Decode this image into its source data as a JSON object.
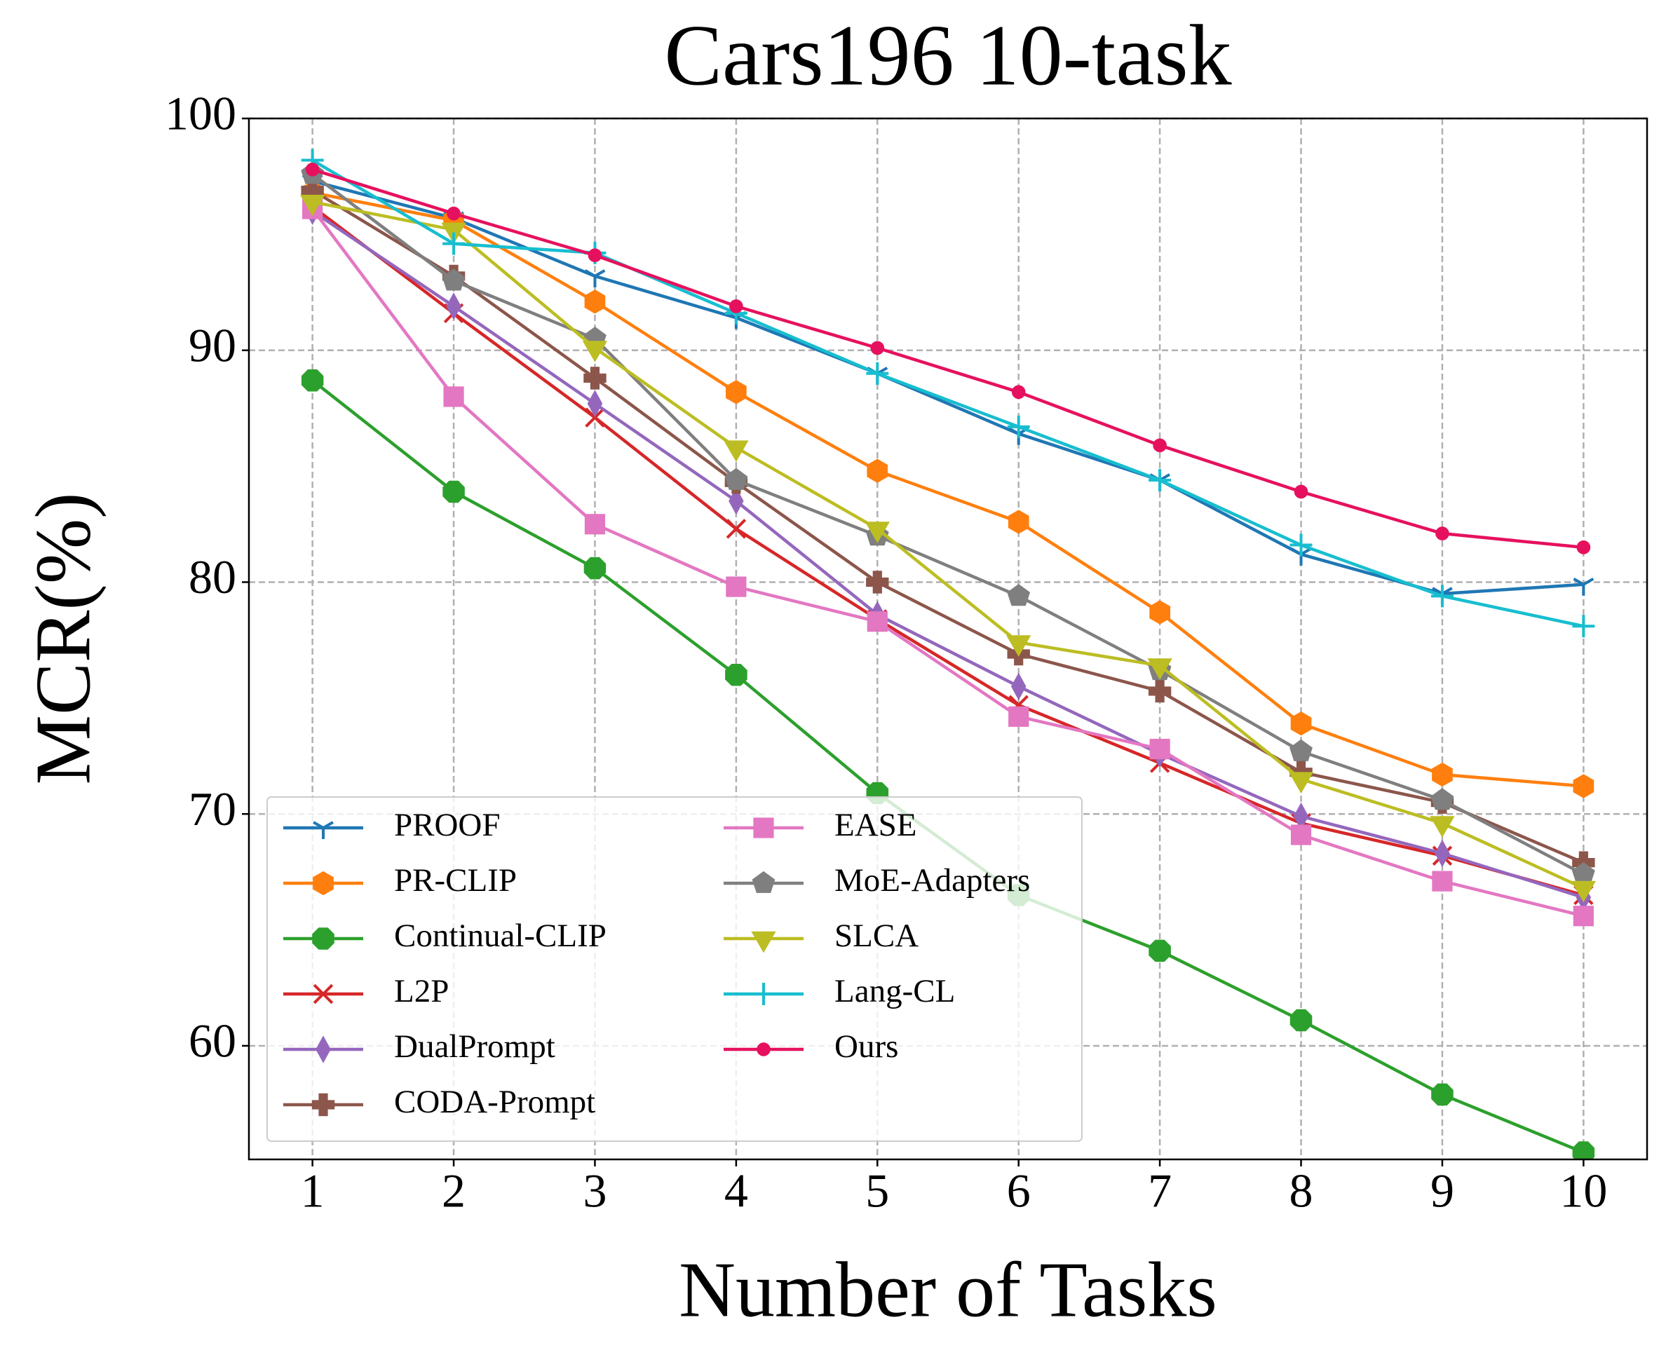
{
  "chart_data": {
    "type": "line",
    "title": "Cars196 10-task",
    "xlabel": "Number of Tasks",
    "ylabel": "MCR(%)",
    "x": [
      1,
      2,
      3,
      4,
      5,
      6,
      7,
      8,
      9,
      10
    ],
    "xlim": [
      0.55,
      10.45
    ],
    "xticks": [
      1,
      2,
      3,
      4,
      5,
      6,
      7,
      8,
      9,
      10
    ],
    "ylim": [
      55.1,
      100
    ],
    "yticks": [
      60,
      70,
      80,
      90,
      100
    ],
    "grid": true,
    "legend": "lower left",
    "legend_columns": 2,
    "series": [
      {
        "name": "PROOF",
        "color": "#1f77b4",
        "marker": "tri_down",
        "values": [
          97.3,
          95.7,
          93.2,
          91.4,
          89.0,
          86.4,
          84.4,
          81.2,
          79.5,
          79.9
        ]
      },
      {
        "name": "PR-CLIP",
        "color": "#ff7f0e",
        "marker": "hexagon",
        "values": [
          96.8,
          95.6,
          92.1,
          88.2,
          84.8,
          82.6,
          78.7,
          73.9,
          71.7,
          71.2
        ]
      },
      {
        "name": "Continual-CLIP",
        "color": "#2ca02c",
        "marker": "octagon",
        "values": [
          88.7,
          83.9,
          80.6,
          76.0,
          70.9,
          66.5,
          64.1,
          61.1,
          57.9,
          55.4
        ]
      },
      {
        "name": "L2P",
        "color": "#d62728",
        "marker": "x",
        "values": [
          96.2,
          91.6,
          87.1,
          82.3,
          78.4,
          74.7,
          72.2,
          69.6,
          68.2,
          66.5
        ]
      },
      {
        "name": "DualPrompt",
        "color": "#9467bd",
        "marker": "thin_diamond",
        "values": [
          96.0,
          91.9,
          87.7,
          83.5,
          78.6,
          75.5,
          72.6,
          69.9,
          68.3,
          66.4
        ]
      },
      {
        "name": "CODA-Prompt",
        "color": "#8c564b",
        "marker": "plus_filled",
        "values": [
          96.9,
          93.2,
          88.8,
          84.3,
          80.0,
          76.9,
          75.3,
          71.8,
          70.5,
          67.9
        ]
      },
      {
        "name": "EASE",
        "color": "#e377c2",
        "marker": "square",
        "values": [
          96.1,
          88.0,
          82.5,
          79.8,
          78.3,
          74.2,
          72.8,
          69.1,
          67.1,
          65.6
        ]
      },
      {
        "name": "MoE-Adapters",
        "color": "#7f7f7f",
        "marker": "pentagon",
        "values": [
          97.6,
          93.0,
          90.5,
          84.4,
          82.0,
          79.4,
          76.2,
          72.7,
          70.6,
          67.4
        ]
      },
      {
        "name": "SLCA",
        "color": "#bcbd22",
        "marker": "triangle_down",
        "values": [
          96.4,
          95.2,
          90.1,
          85.8,
          82.3,
          77.4,
          76.4,
          71.5,
          69.6,
          66.8
        ]
      },
      {
        "name": "Lang-CL",
        "color": "#17becf",
        "marker": "plus",
        "values": [
          98.2,
          94.6,
          94.2,
          91.6,
          89.0,
          86.7,
          84.4,
          81.6,
          79.4,
          78.1
        ]
      },
      {
        "name": "Ours",
        "color": "#e6115e",
        "marker": "circle",
        "values": [
          97.8,
          95.9,
          94.1,
          91.9,
          90.1,
          88.2,
          85.9,
          83.9,
          82.1,
          81.5
        ]
      }
    ]
  }
}
